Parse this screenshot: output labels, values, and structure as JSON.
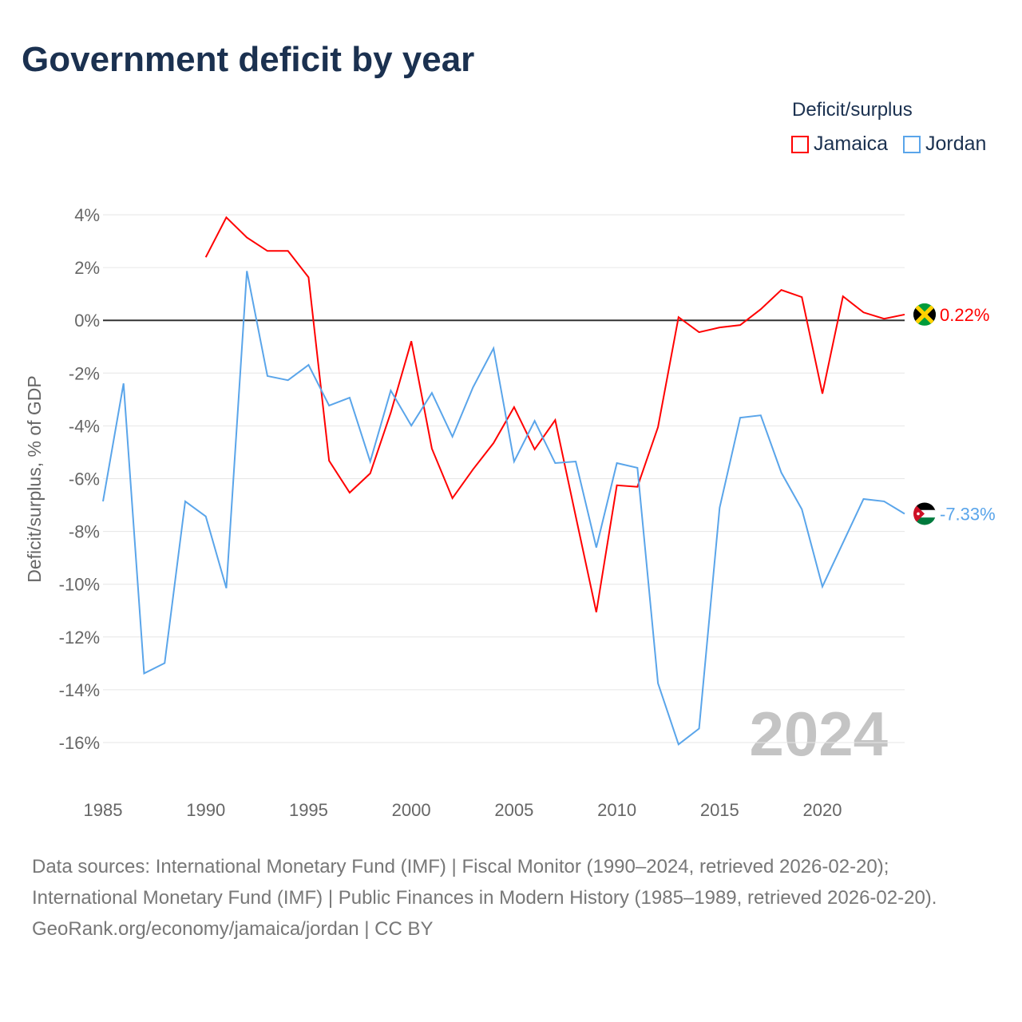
{
  "chart_data": {
    "type": "line",
    "title": "Government deficit by year",
    "ylabel": "Deficit/surplus, % of GDP",
    "xlabel": "",
    "xlim": [
      1985,
      2024
    ],
    "ylim": [
      -16,
      4
    ],
    "xticks": [
      1985,
      1990,
      1995,
      2000,
      2005,
      2010,
      2015,
      2020
    ],
    "yticks": [
      4,
      2,
      0,
      -2,
      -4,
      -6,
      -8,
      -10,
      -12,
      -14,
      -16
    ],
    "ytick_labels": [
      "4%",
      "2%",
      "0%",
      "-2%",
      "-4%",
      "-6%",
      "-8%",
      "-10%",
      "-12%",
      "-14%",
      "-16%"
    ],
    "legend_title": "Deficit/surplus",
    "legend_position": "top-right",
    "year_watermark": "2024",
    "series": [
      {
        "name": "Jamaica",
        "color": "#ff0000",
        "end_label": "0.22%",
        "x": [
          1990,
          1991,
          1992,
          1993,
          1994,
          1995,
          1996,
          1997,
          1998,
          1999,
          2000,
          2001,
          2002,
          2003,
          2004,
          2005,
          2006,
          2007,
          2008,
          2009,
          2010,
          2011,
          2012,
          2013,
          2014,
          2015,
          2016,
          2017,
          2018,
          2019,
          2020,
          2021,
          2022,
          2023,
          2024
        ],
        "values": [
          2.39,
          3.9,
          3.14,
          2.63,
          2.63,
          1.63,
          -5.32,
          -6.53,
          -5.8,
          -3.5,
          -0.79,
          -4.86,
          -6.74,
          -5.65,
          -4.65,
          -3.29,
          -4.89,
          -3.78,
          -7.43,
          -11.06,
          -6.25,
          -6.31,
          -4.05,
          0.12,
          -0.45,
          -0.27,
          -0.18,
          0.42,
          1.15,
          0.88,
          -2.78,
          0.91,
          0.3,
          0.06,
          0.22
        ]
      },
      {
        "name": "Jordan",
        "color": "#5aa5ea",
        "end_label": "-7.33%",
        "x": [
          1985,
          1986,
          1987,
          1988,
          1989,
          1990,
          1991,
          1992,
          1993,
          1994,
          1995,
          1996,
          1997,
          1998,
          1999,
          2000,
          2001,
          2002,
          2003,
          2004,
          2005,
          2006,
          2007,
          2008,
          2009,
          2010,
          2011,
          2012,
          2013,
          2014,
          2015,
          2016,
          2017,
          2018,
          2019,
          2020,
          2021,
          2022,
          2023,
          2024
        ],
        "values": [
          -6.86,
          -2.39,
          -13.38,
          -12.99,
          -6.86,
          -7.43,
          -10.15,
          1.87,
          -2.11,
          -2.27,
          -1.69,
          -3.23,
          -2.93,
          -5.35,
          -2.66,
          -3.99,
          -2.75,
          -4.41,
          -2.54,
          -1.06,
          -5.35,
          -3.81,
          -5.41,
          -5.35,
          -8.61,
          -5.41,
          -5.59,
          -13.75,
          -16.07,
          -15.47,
          -7.1,
          -3.69,
          -3.6,
          -5.77,
          -7.16,
          -10.09,
          -8.43,
          -6.77,
          -6.86,
          -7.33
        ]
      }
    ]
  },
  "footer": {
    "sources": "Data sources: International Monetary Fund (IMF) | Fiscal Monitor (1990–2024, retrieved 2026-02-20); International Monetary Fund (IMF) | Public Finances in Modern History (1985–1989, retrieved 2026-02-20).",
    "credit": "GeoRank.org/economy/jamaica/jordan | CC BY"
  }
}
